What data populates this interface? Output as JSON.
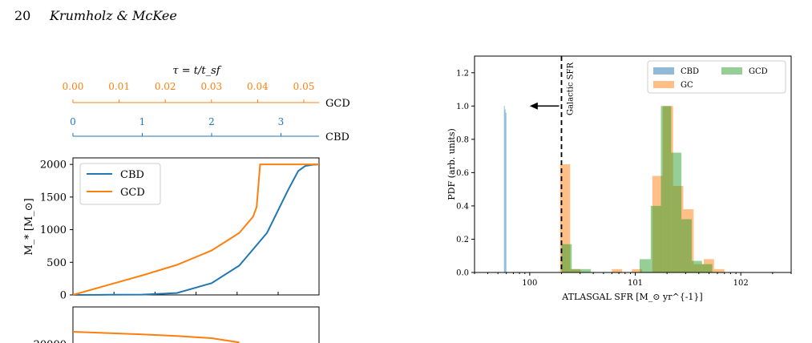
{
  "header": {
    "page_number": "20",
    "authors": "Krumholz & McKee"
  },
  "colors": {
    "cbd": "#1f77b4",
    "gcd": "#ff7f0e",
    "gc": "#ff7f0e",
    "gcd_hist": "#2ca02c"
  },
  "left_figure": {
    "tau_axis": {
      "title": "τ = t/t_sf",
      "gcd_label": "GCD",
      "cbd_label": "CBD",
      "gcd_ticks": [
        "0.00",
        "0.01",
        "0.02",
        "0.03",
        "0.04",
        "0.05"
      ],
      "cbd_ticks": [
        "0",
        "1",
        "2",
        "3"
      ]
    },
    "top_panel": {
      "ylabel": "M_* [M_⊙]",
      "ytick_labels": [
        "0",
        "500",
        "1000",
        "1500",
        "2000"
      ]
    },
    "bottom_panel": {
      "ytick_labels": [
        "20000"
      ]
    }
  },
  "chart_data": [
    {
      "type": "line",
      "ylabel": "M_* [M_⊙]",
      "ylim": [
        0,
        2100
      ],
      "xlim": [
        0,
        3.55
      ],
      "x_axis": "CBD time τ",
      "legend_position": "upper-left",
      "series": [
        {
          "name": "CBD",
          "x": [
            0,
            0.5,
            1.0,
            1.5,
            2.0,
            2.4,
            2.8,
            3.1,
            3.25,
            3.35,
            3.45,
            3.55
          ],
          "y": [
            0,
            2,
            5,
            30,
            180,
            450,
            950,
            1600,
            1900,
            1975,
            1995,
            2000
          ]
        },
        {
          "name": "GCD",
          "x": [
            0,
            0.5,
            1.0,
            1.5,
            2.0,
            2.4,
            2.6,
            2.65,
            2.7,
            3.55
          ],
          "y": [
            0,
            150,
            300,
            460,
            680,
            950,
            1200,
            1350,
            2000,
            2000
          ]
        }
      ]
    },
    {
      "type": "line",
      "yticks": [
        20000
      ],
      "series": [
        {
          "name": "GCD",
          "x": [
            0,
            0.5,
            1.0,
            1.5,
            2.0,
            2.4
          ],
          "y": [
            23000,
            22700,
            22400,
            22000,
            21500,
            20500
          ]
        }
      ]
    },
    {
      "type": "bar",
      "title": "",
      "xlabel": "ATLASGAL SFR [M_⊙ yr^{-1}]",
      "ylabel": "PDF (arb. units)",
      "xscale": "log",
      "xlim": [
        0.3,
        300
      ],
      "ylim": [
        0,
        1.3
      ],
      "xtick_labels": [
        "10^0",
        "10^1",
        "10^2"
      ],
      "ytick_labels": [
        "0.0",
        "0.2",
        "0.4",
        "0.6",
        "0.8",
        "1.0",
        "1.2"
      ],
      "legend_position": "upper-right",
      "annotation": {
        "text": "Galactic SFR",
        "x": 2.0,
        "arrow_to": 1.0,
        "arrow_y": 1.0
      },
      "series": [
        {
          "name": "CBD",
          "bins": [
            [
              0.57,
              0.58,
              1.0
            ],
            [
              0.58,
              0.59,
              0.98
            ],
            [
              0.59,
              0.6,
              0.96
            ]
          ]
        },
        {
          "name": "GC",
          "bins": [
            [
              1.94,
              2.42,
              0.65
            ],
            [
              2.42,
              3.03,
              0.02
            ],
            [
              6.0,
              7.5,
              0.02
            ],
            [
              9.3,
              11.6,
              0.02
            ],
            [
              14.5,
              18.2,
              0.58
            ],
            [
              18.2,
              22.8,
              1.0
            ],
            [
              22.8,
              28.5,
              0.52
            ],
            [
              28.5,
              35.7,
              0.38
            ],
            [
              35.7,
              44.6,
              0.05
            ],
            [
              44.6,
              55.8,
              0.08
            ],
            [
              55.8,
              69.8,
              0.02
            ]
          ]
        },
        {
          "name": "GCD",
          "bins": [
            [
              2.0,
              2.5,
              0.17
            ],
            [
              2.5,
              3.1,
              0.02
            ],
            [
              3.1,
              3.8,
              0.02
            ],
            [
              11.0,
              14.0,
              0.08
            ],
            [
              14.0,
              17.5,
              0.4
            ],
            [
              17.5,
              21.9,
              1.0
            ],
            [
              21.9,
              27.4,
              0.72
            ],
            [
              27.4,
              34.3,
              0.32
            ],
            [
              34.3,
              42.9,
              0.07
            ],
            [
              42.9,
              53.7,
              0.05
            ]
          ]
        }
      ]
    }
  ]
}
